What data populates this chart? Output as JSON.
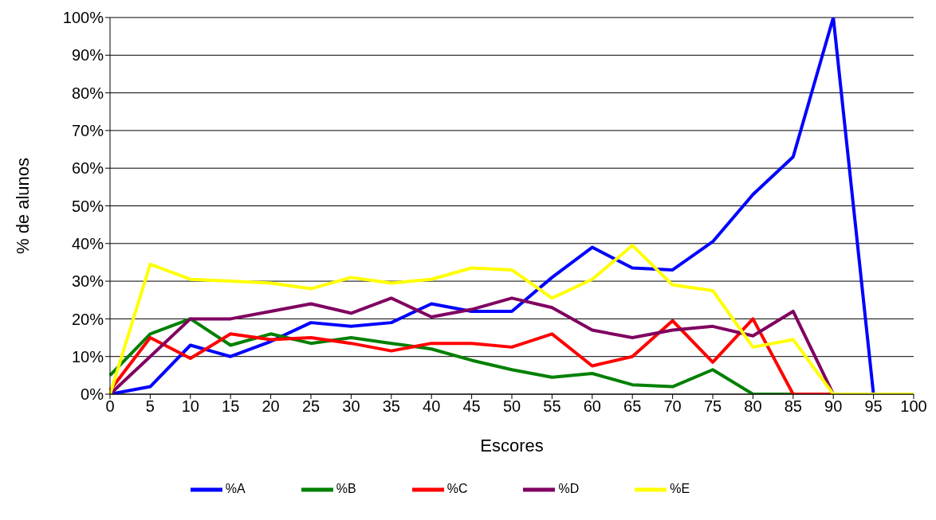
{
  "chart_data": {
    "type": "line",
    "xlabel": "Escores",
    "ylabel": "% de alunos",
    "categories": [
      "0",
      "5",
      "10",
      "15",
      "20",
      "25",
      "30",
      "35",
      "40",
      "45",
      "50",
      "55",
      "60",
      "65",
      "70",
      "75",
      "80",
      "85",
      "90",
      "95",
      "100"
    ],
    "series": [
      {
        "name": "%A",
        "color": "#0000ff",
        "values": [
          0,
          2,
          13,
          10,
          14,
          19,
          18,
          19,
          24,
          22,
          22,
          31,
          39,
          33.5,
          33,
          40.5,
          53,
          63,
          100,
          0,
          0
        ]
      },
      {
        "name": "%B",
        "color": "#008000",
        "values": [
          5,
          16,
          20,
          13,
          16,
          13.5,
          15,
          13.5,
          12,
          9,
          6.5,
          4.5,
          5.5,
          2.5,
          2,
          6.5,
          0,
          0,
          0,
          null,
          null
        ]
      },
      {
        "name": "%C",
        "color": "#ff0000",
        "values": [
          1,
          15,
          9.5,
          16,
          14.5,
          15,
          13.5,
          11.5,
          13.5,
          13.5,
          12.5,
          16,
          7.5,
          10,
          19.5,
          8.5,
          20,
          0,
          0,
          0,
          0
        ]
      },
      {
        "name": "%D",
        "color": "#800060",
        "values": [
          0,
          10,
          20,
          20,
          22,
          24,
          21.5,
          25.5,
          20.5,
          22.5,
          25.5,
          23,
          17,
          15,
          17,
          18,
          15.5,
          22,
          0,
          0,
          0
        ]
      },
      {
        "name": "%E",
        "color": "#ffff00",
        "values": [
          0,
          34.5,
          30.5,
          30,
          29.5,
          28,
          31,
          29.5,
          30.5,
          33.5,
          33,
          25.5,
          30.5,
          39.5,
          29,
          27.5,
          12.5,
          14.5,
          0,
          0,
          0
        ]
      }
    ],
    "ylim": [
      0,
      100
    ],
    "yticks": [
      {
        "value": 0,
        "label": "0%"
      },
      {
        "value": 10,
        "label": "10%"
      },
      {
        "value": 20,
        "label": "20%"
      },
      {
        "value": 30,
        "label": "30%"
      },
      {
        "value": 40,
        "label": "40%"
      },
      {
        "value": 50,
        "label": "50%"
      },
      {
        "value": 60,
        "label": "60%"
      },
      {
        "value": 70,
        "label": "70%"
      },
      {
        "value": 80,
        "label": "80%"
      },
      {
        "value": 90,
        "label": "90%"
      },
      {
        "value": 100,
        "label": "100%"
      }
    ],
    "grid": "y",
    "legend": "bottom",
    "marker": "none",
    "line_style": "solid"
  }
}
